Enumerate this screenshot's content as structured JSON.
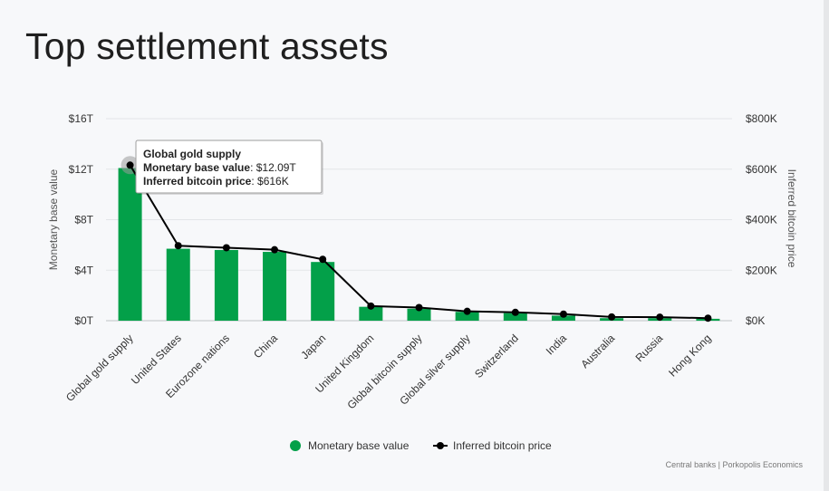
{
  "page": {
    "title": "Top settlement assets"
  },
  "chart_data": {
    "type": "bar",
    "title": "Top settlement assets",
    "categories": [
      "Global gold supply",
      "United States",
      "Eurozone nations",
      "China",
      "Japan",
      "United Kingdom",
      "Global bitcoin supply",
      "Global silver supply",
      "Switzerland",
      "India",
      "Australia",
      "Russia",
      "Hong Kong"
    ],
    "series": [
      {
        "name": "Monetary base value",
        "type": "bar",
        "axis": "left",
        "color": "#03a049",
        "values": [
          12.09,
          5.7,
          5.6,
          5.45,
          4.65,
          1.1,
          0.95,
          0.7,
          0.6,
          0.4,
          0.2,
          0.2,
          0.15
        ]
      },
      {
        "name": "Inferred bitcoin price",
        "type": "line",
        "axis": "right",
        "color": "#000000",
        "values": [
          616,
          297,
          289,
          281,
          243,
          58,
          52,
          37,
          33,
          26,
          15,
          14,
          10
        ]
      }
    ],
    "y_left": {
      "label": "Monetary base value",
      "ylim": [
        0,
        16
      ],
      "ticks": [
        0,
        4,
        8,
        12,
        16
      ],
      "tick_labels": [
        "$0T",
        "$4T",
        "$8T",
        "$12T",
        "$16T"
      ]
    },
    "y_right": {
      "label": "Inferred bitcoin price",
      "ylim": [
        0,
        800
      ],
      "ticks": [
        0,
        200,
        400,
        600,
        800
      ],
      "tick_labels": [
        "$0K",
        "$200K",
        "$400K",
        "$600K",
        "$800K"
      ]
    },
    "grid": true,
    "legend": {
      "placement": "bottom-center",
      "items": [
        "Monetary base value",
        "Inferred bitcoin price"
      ]
    },
    "tooltip": {
      "title": "Global gold supply",
      "line1_label": "Monetary base value",
      "line1_value": ": $12.09T",
      "line2_label": "Inferred bitcoin price",
      "line2_value": ": $616K"
    },
    "credits": "Central banks | Porkopolis Economics"
  }
}
